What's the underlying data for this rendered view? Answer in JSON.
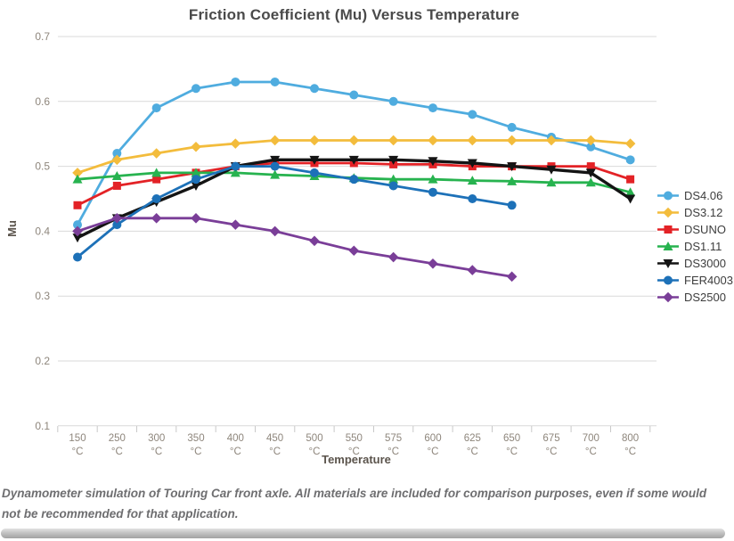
{
  "chart_data": {
    "type": "line",
    "title": "Friction Coefficient (Mu) Versus Temperature",
    "xlabel": "Temperature",
    "ylabel": "Mu",
    "x_unit": "°C",
    "categories": [
      "150",
      "250",
      "300",
      "350",
      "400",
      "450",
      "500",
      "550",
      "575",
      "600",
      "625",
      "650",
      "675",
      "700",
      "800"
    ],
    "ylim": [
      0.1,
      0.7
    ],
    "y_ticks": [
      0.7,
      0.6,
      0.5,
      0.4,
      0.3,
      0.2,
      0.1
    ],
    "grid": "horizontal",
    "legend_position": "right",
    "series": [
      {
        "name": "DS4.06",
        "color": "#4FACDF",
        "marker": "circle",
        "values": [
          0.41,
          0.52,
          0.59,
          0.62,
          0.63,
          0.63,
          0.62,
          0.61,
          0.6,
          0.59,
          0.58,
          0.56,
          0.545,
          0.53,
          0.51
        ]
      },
      {
        "name": "DS3.12",
        "color": "#F3BC3C",
        "marker": "diamond",
        "values": [
          0.49,
          0.51,
          0.52,
          0.53,
          0.535,
          0.54,
          0.54,
          0.54,
          0.54,
          0.54,
          0.54,
          0.54,
          0.54,
          0.54,
          0.535
        ]
      },
      {
        "name": "DSUNO",
        "color": "#E32226",
        "marker": "square",
        "values": [
          0.44,
          0.47,
          0.48,
          0.49,
          0.5,
          0.505,
          0.505,
          0.505,
          0.503,
          0.503,
          0.5,
          0.5,
          0.5,
          0.5,
          0.48
        ]
      },
      {
        "name": "DS1.11",
        "color": "#27B34F",
        "marker": "triangle-up",
        "values": [
          0.48,
          0.485,
          0.49,
          0.49,
          0.49,
          0.487,
          0.485,
          0.482,
          0.48,
          0.48,
          0.478,
          0.477,
          0.475,
          0.475,
          0.46
        ]
      },
      {
        "name": "DS3000",
        "color": "#141414",
        "marker": "triangle-down",
        "values": [
          0.39,
          0.42,
          0.445,
          0.47,
          0.5,
          0.51,
          0.51,
          0.51,
          0.51,
          0.508,
          0.505,
          0.5,
          0.495,
          0.49,
          0.45
        ]
      },
      {
        "name": "FER4003",
        "color": "#1D71B8",
        "marker": "circle",
        "values": [
          0.36,
          0.41,
          0.45,
          0.48,
          0.5,
          0.5,
          0.49,
          0.48,
          0.47,
          0.46,
          0.45,
          0.44,
          null,
          null,
          null
        ]
      },
      {
        "name": "DS2500",
        "color": "#7A3E98",
        "marker": "diamond",
        "values": [
          0.4,
          0.42,
          0.42,
          0.42,
          0.41,
          0.4,
          0.385,
          0.37,
          0.36,
          0.35,
          0.34,
          0.33,
          null,
          null,
          null
        ]
      }
    ]
  },
  "caption": "Dynamometer simulation of Touring Car front axle. All materials are included for comparison purposes, even if some would not be recommended for that application."
}
